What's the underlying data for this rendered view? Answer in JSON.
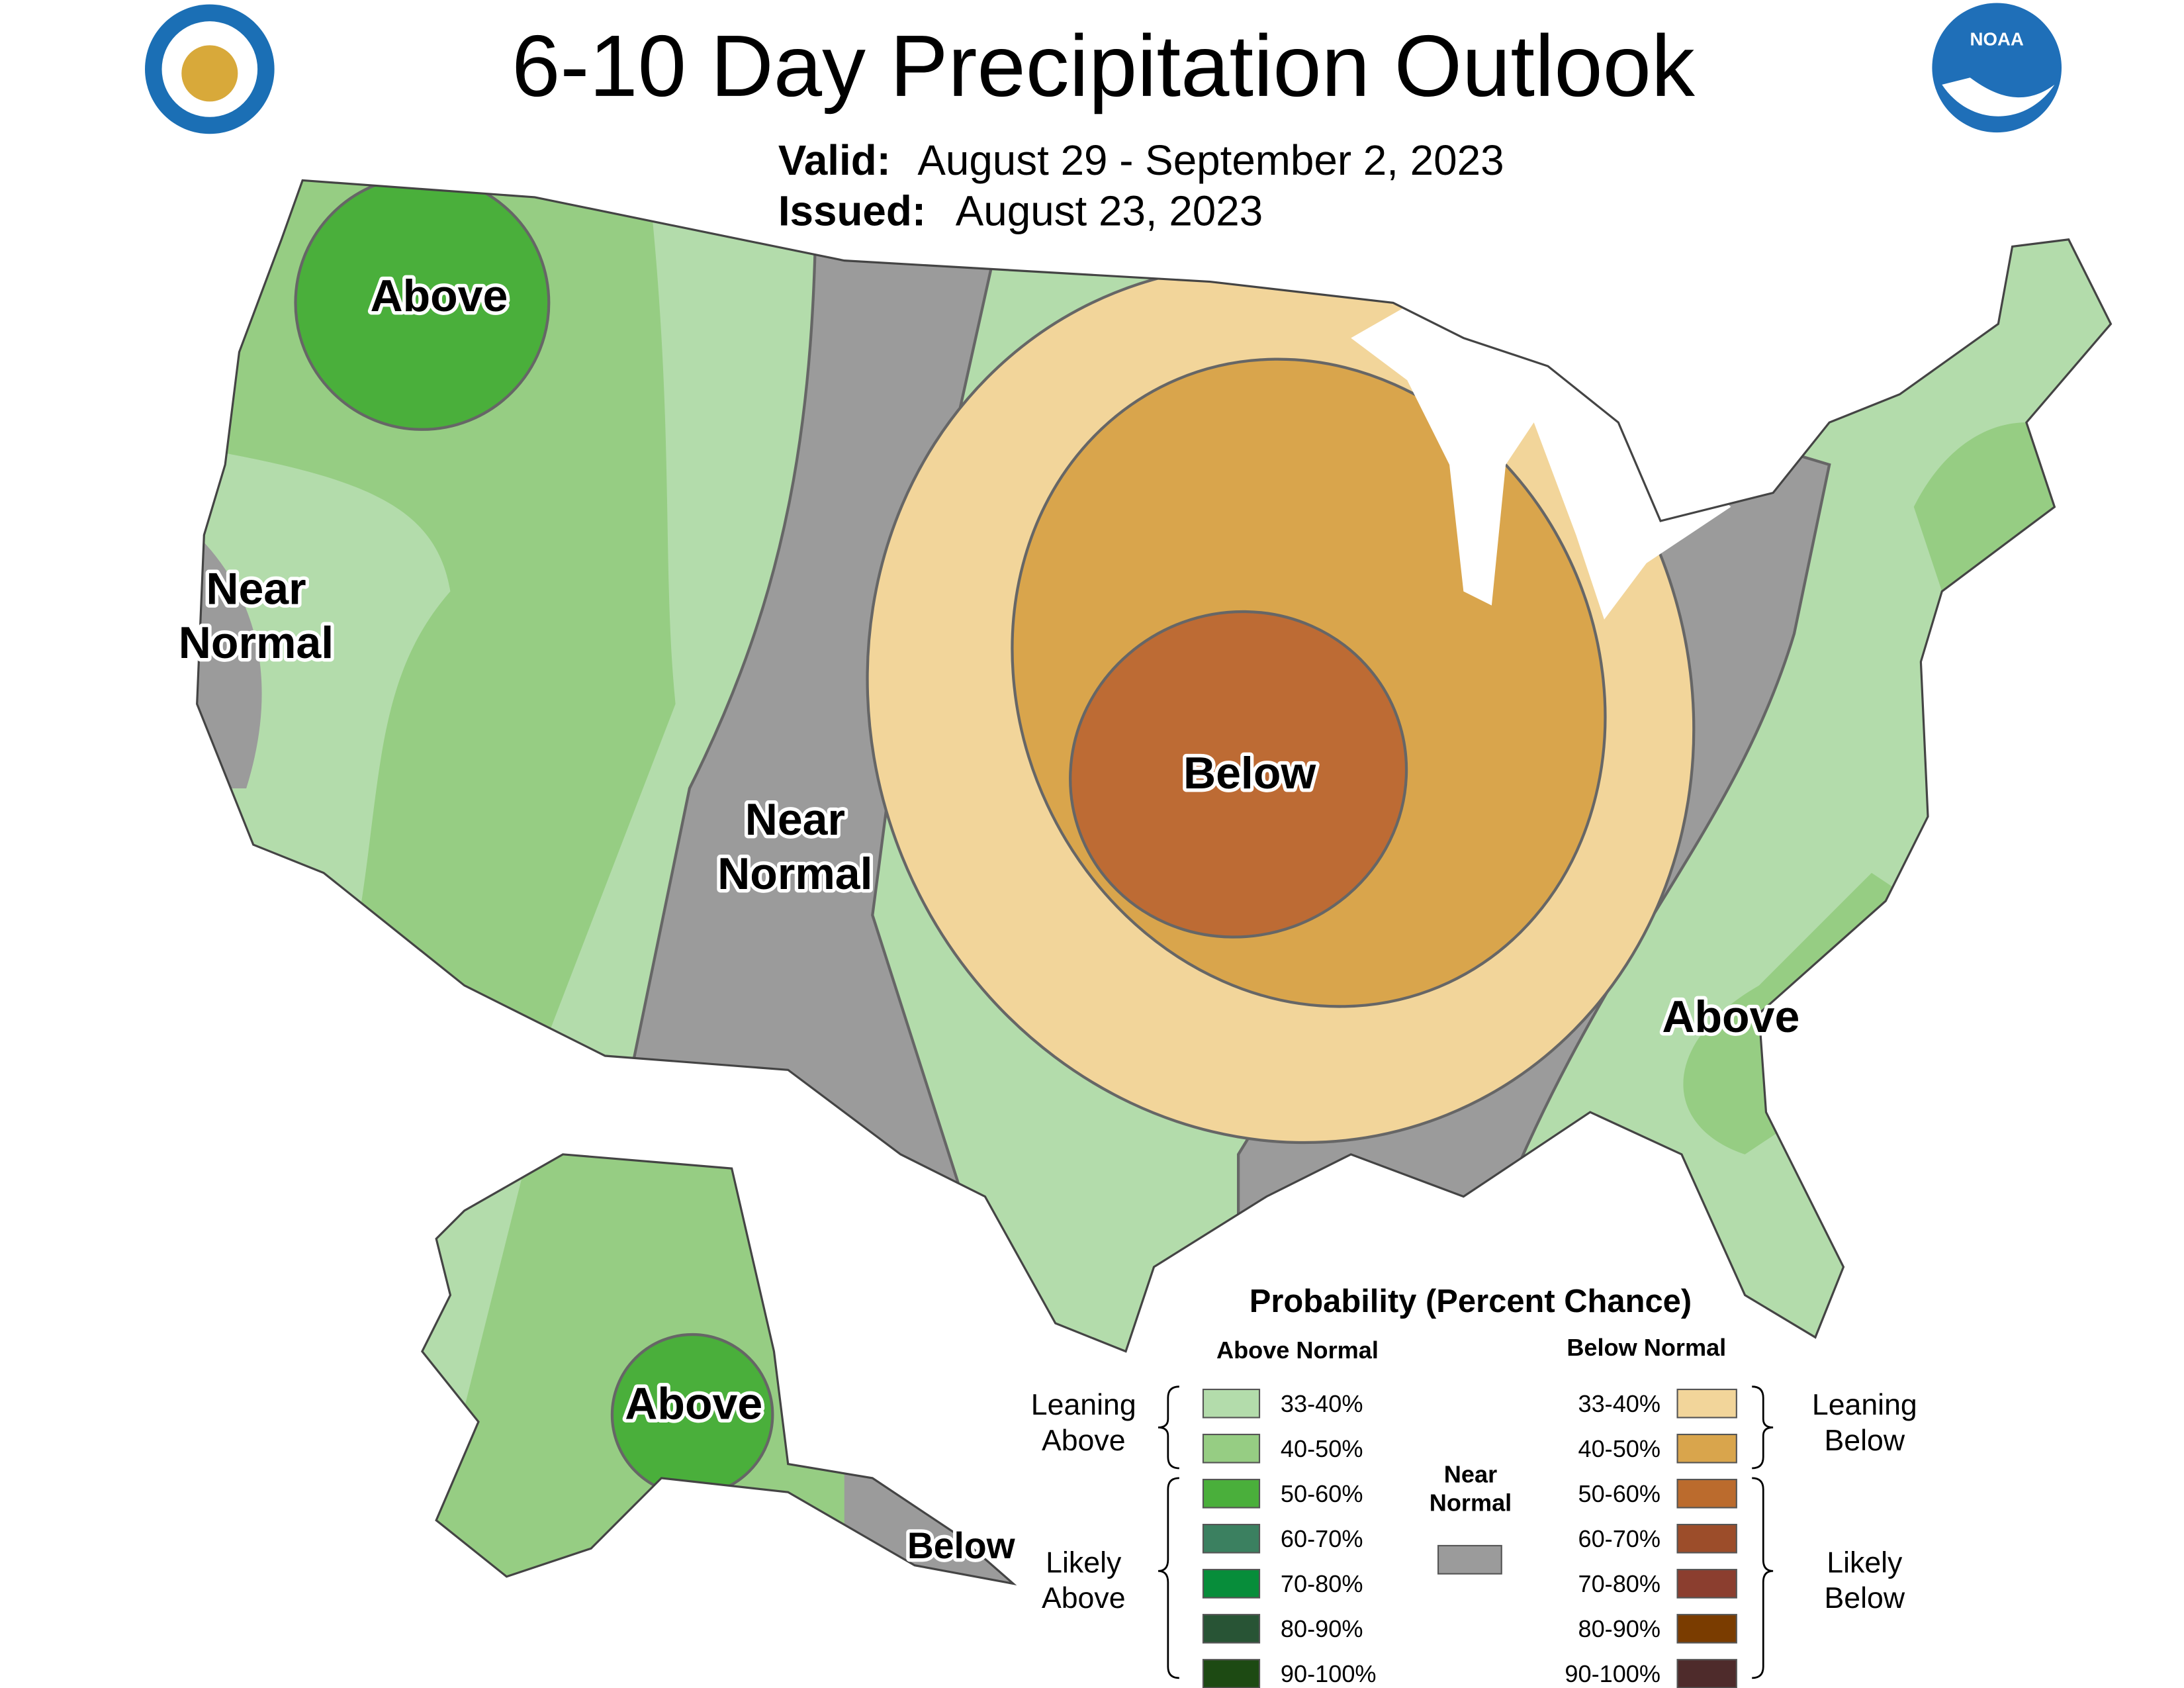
{
  "header": {
    "title": "6-10 Day Precipitation Outlook",
    "valid_label": "Valid:",
    "valid": "August 29 - September 2, 2023",
    "issued_label": "Issued:",
    "issued": "August 23, 2023"
  },
  "logos": {
    "noaa": "NOAA"
  },
  "map_labels": [
    "Above",
    "Near Normal",
    "Near Normal",
    "Below",
    "Above",
    "Above",
    "Below"
  ],
  "legend": {
    "title": "Probability (Percent Chance)",
    "above_heading": "Above Normal",
    "below_heading": "Below Normal",
    "above": [
      {
        "label": "33-40%",
        "color": "#b3dcab"
      },
      {
        "label": "40-50%",
        "color": "#96cd83"
      },
      {
        "label": "50-60%",
        "color": "#4aaf3b"
      },
      {
        "label": "60-70%",
        "color": "#3b8060"
      },
      {
        "label": "70-80%",
        "color": "#078d3a"
      },
      {
        "label": "80-90%",
        "color": "#285435"
      },
      {
        "label": "90-100%",
        "color": "#1d4a13"
      }
    ],
    "below": [
      {
        "label": "33-40%",
        "color": "#f2d59a"
      },
      {
        "label": "40-50%",
        "color": "#d9a54c"
      },
      {
        "label": "50-60%",
        "color": "#bb6b2d"
      },
      {
        "label": "60-70%",
        "color": "#9c4d2a"
      },
      {
        "label": "70-80%",
        "color": "#8b3e2f"
      },
      {
        "label": "80-90%",
        "color": "#7a3c00"
      },
      {
        "label": "90-100%",
        "color": "#4e2b2b"
      }
    ],
    "near_normal": {
      "label": "Near Normal",
      "color": "#9b9b9b"
    },
    "leaning_above": "Leaning Above",
    "likely_above": "Likely Above",
    "leaning_below": "Leaning Below",
    "likely_below": "Likely Below"
  }
}
